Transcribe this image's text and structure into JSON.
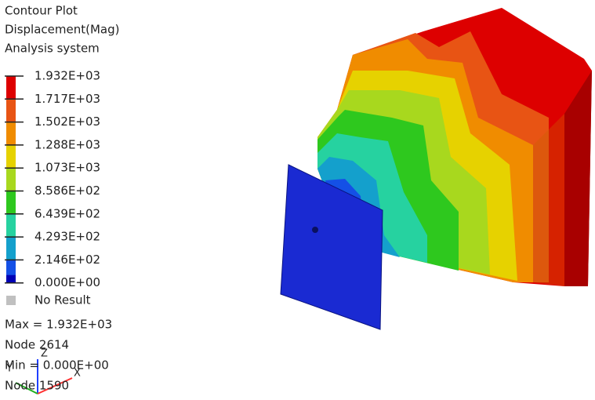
{
  "legend": {
    "title_lines": [
      "Contour Plot",
      "Displacement(Mag)",
      "Analysis system"
    ],
    "labels": [
      "1.932E+03",
      "1.717E+03",
      "1.502E+03",
      "1.288E+03",
      "1.073E+03",
      "8.586E+02",
      "6.439E+02",
      "4.293E+02",
      "2.146E+02",
      "0.000E+00"
    ],
    "colors": [
      "#dd0000",
      "#e85414",
      "#f08c00",
      "#e6d200",
      "#a8d81e",
      "#2ec81e",
      "#26d2a0",
      "#14a0cc",
      "#1450e6",
      "#0000b4"
    ],
    "no_result": "No Result",
    "no_result_color": "#c0c0c0"
  },
  "info": {
    "max": "Max = 1.932E+03",
    "max_node": "Node 2614",
    "min": "Min = 0.000E+00",
    "min_node": "Node 1590"
  },
  "triad": {
    "z": "Z",
    "y": "Y",
    "x": "X"
  }
}
